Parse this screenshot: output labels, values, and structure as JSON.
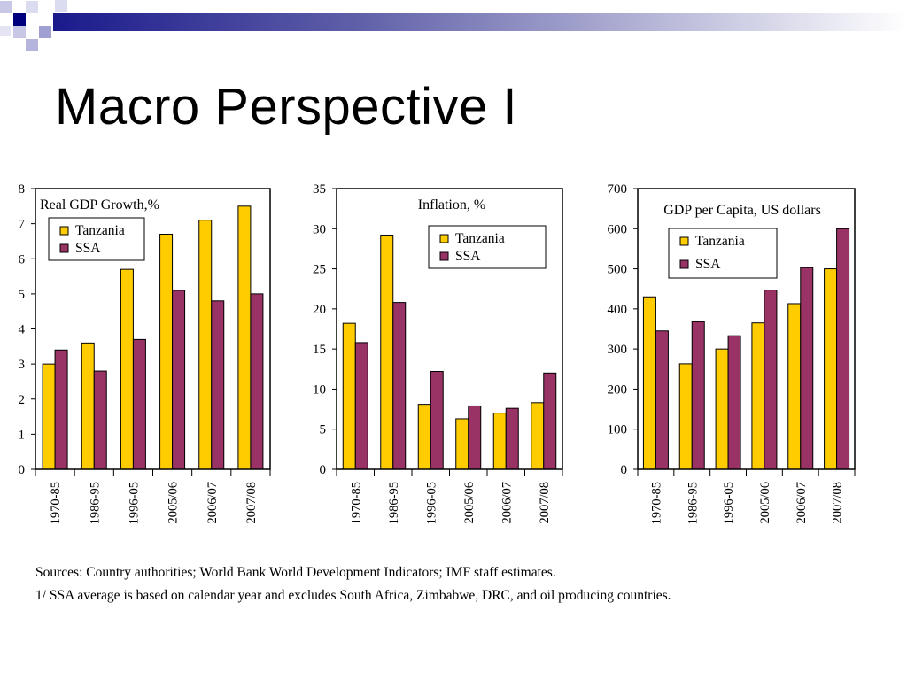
{
  "slide": {
    "title": "Macro Perspective I"
  },
  "colors": {
    "tanzania": "#FFCC00",
    "ssa": "#993366",
    "header_dark": "#00007F",
    "header_light": "#C8C8E6"
  },
  "chart_data": [
    {
      "type": "bar",
      "title": "Real GDP Growth,%",
      "categories": [
        "1970-85",
        "1986-95",
        "1996-05",
        "2005/06",
        "2006/07",
        "2007/08"
      ],
      "series": [
        {
          "name": "Tanzania",
          "values": [
            3.0,
            3.6,
            5.7,
            6.7,
            7.1,
            7.5
          ]
        },
        {
          "name": "SSA",
          "values": [
            3.4,
            2.8,
            3.7,
            5.1,
            4.8,
            5.0
          ]
        }
      ],
      "ylim": [
        0,
        8
      ],
      "yticks": [
        0,
        1,
        2,
        3,
        4,
        5,
        6,
        7,
        8
      ],
      "legend": "top-left"
    },
    {
      "type": "bar",
      "title": "Inflation, %",
      "categories": [
        "1970-85",
        "1986-95",
        "1996-05",
        "2005/06",
        "2006/07",
        "2007/08"
      ],
      "series": [
        {
          "name": "Tanzania",
          "values": [
            18.2,
            29.2,
            8.1,
            6.3,
            7.0,
            8.3
          ]
        },
        {
          "name": "SSA",
          "values": [
            15.8,
            20.8,
            12.2,
            7.9,
            7.6,
            12.0
          ]
        }
      ],
      "ylim": [
        0,
        35
      ],
      "yticks": [
        0,
        5,
        10,
        15,
        20,
        25,
        30,
        35
      ],
      "legend": "top-right"
    },
    {
      "type": "bar",
      "title": "GDP per Capita, US dollars",
      "categories": [
        "1970-85",
        "1986-95",
        "1996-05",
        "2005/06",
        "2006/07",
        "2007/08"
      ],
      "series": [
        {
          "name": "Tanzania",
          "values": [
            430,
            263,
            300,
            365,
            413,
            500
          ]
        },
        {
          "name": "SSA",
          "values": [
            345,
            368,
            333,
            447,
            503,
            600
          ]
        }
      ],
      "ylim": [
        0,
        700
      ],
      "yticks": [
        0,
        100,
        200,
        300,
        400,
        500,
        600,
        700
      ],
      "legend": "top-right"
    }
  ],
  "footnotes": {
    "sources": "Sources: Country authorities; World Bank World Development Indicators; IMF staff estimates.",
    "note": "1/ SSA average is based on calendar year and excludes South Africa, Zimbabwe, DRC, and oil producing countries."
  }
}
